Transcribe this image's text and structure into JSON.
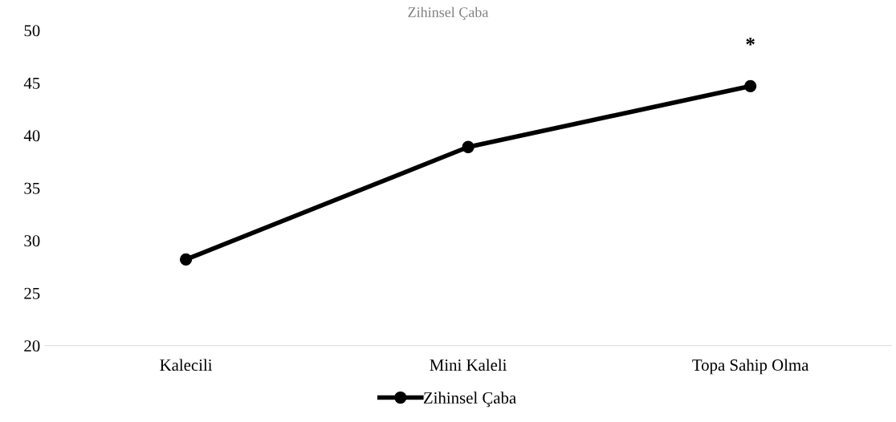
{
  "chart_data": {
    "type": "line",
    "title": "Zihinsel Çaba",
    "categories": [
      "Kalecili",
      "Mini Kaleli",
      "Topa Sahip Olma"
    ],
    "series": [
      {
        "name": "Zihinsel Çaba",
        "color": "#000000",
        "values": [
          28.2,
          38.9,
          44.7
        ]
      }
    ],
    "ylim": [
      20,
      50
    ],
    "yticks": [
      20,
      25,
      30,
      35,
      40,
      45,
      50
    ],
    "grid": false,
    "legend": "bottom",
    "marker": "circle",
    "line_style": "solid",
    "annotations": [
      "*"
    ]
  }
}
